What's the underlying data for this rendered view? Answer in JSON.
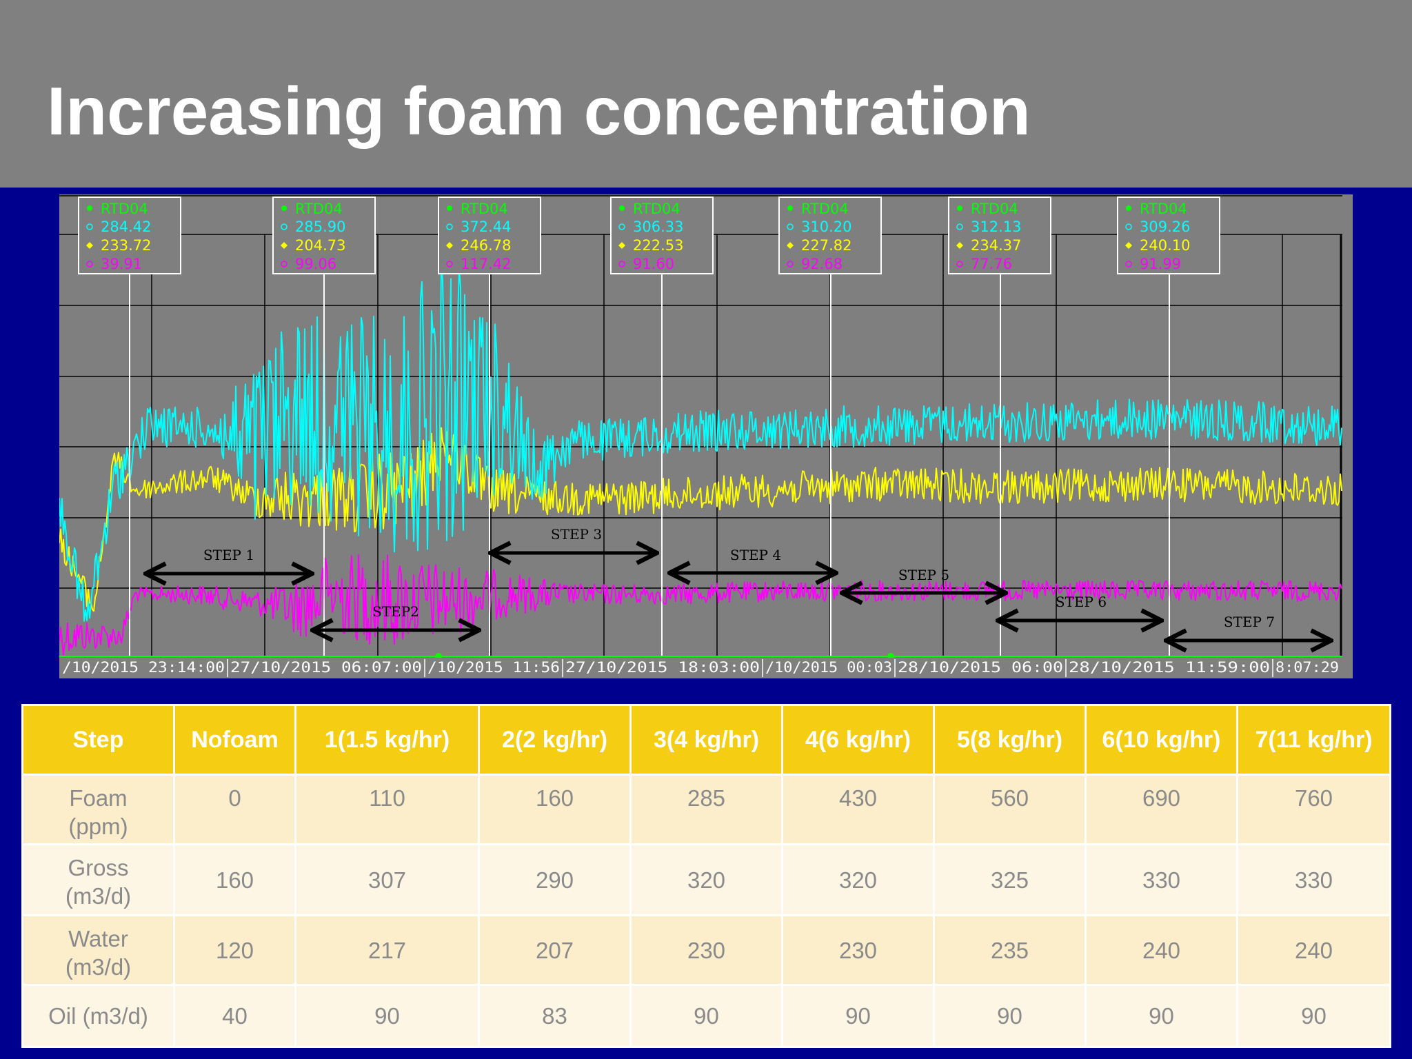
{
  "slide": {
    "title": "Increasing foam concentration"
  },
  "colors": {
    "header_bg": "#808080",
    "slide_bg": "#00008e",
    "plot_bg": "#7f7f7f",
    "cyan": "#00ffff",
    "yellow": "#ffff00",
    "magenta": "#ff00ff",
    "green": "#00ff00",
    "table_header": "#f5cd12",
    "table_row_a": "#fdeecb",
    "table_row_b": "#fef6e4"
  },
  "chart_data": {
    "type": "line",
    "title": "",
    "xlabel": "",
    "ylabel": "",
    "grid": true,
    "x_tick_labels": [
      "/10/2015 23:14:00",
      "27/10/2015 06:07:00",
      "/10/2015 11:56",
      "27/10/2015 18:03:00",
      "/10/2015 00:03",
      "28/10/2015 06:00",
      "28/10/2015 11:59:00",
      "8:07:29"
    ],
    "series_colors": [
      "#00ffff",
      "#ffff00",
      "#ff00ff"
    ],
    "cursors": [
      {
        "tag": "RTD04",
        "values": [
          "284.42",
          "233.72",
          "39.91"
        ]
      },
      {
        "tag": "RTD04",
        "values": [
          "285.90",
          "204.73",
          "99.06"
        ]
      },
      {
        "tag": "RTD04",
        "values": [
          "372.44",
          "246.78",
          "117.42"
        ]
      },
      {
        "tag": "RTD04",
        "values": [
          "306.33",
          "222.53",
          "91.60"
        ]
      },
      {
        "tag": "RTD04",
        "values": [
          "310.20",
          "227.82",
          "92.68"
        ]
      },
      {
        "tag": "RTD04",
        "values": [
          "312.13",
          "234.37",
          "77.76"
        ]
      },
      {
        "tag": "RTD04",
        "values": [
          "309.26",
          "240.10",
          "91.99"
        ]
      }
    ],
    "steps": [
      "STEP 1",
      "STEP2",
      "STEP 3",
      "STEP 4",
      "STEP 5",
      "STEP 6",
      "STEP 7"
    ]
  },
  "table": {
    "headers": [
      [
        "Step"
      ],
      [
        "No",
        "foam"
      ],
      [
        "1",
        "(1.5 kg/hr)"
      ],
      [
        "2",
        "(2 kg/hr)"
      ],
      [
        "3",
        "(4 kg/hr)"
      ],
      [
        "4",
        "(6 kg/hr)"
      ],
      [
        "5",
        "(8 kg/hr)"
      ],
      [
        "6",
        "(10 kg/hr)"
      ],
      [
        "7",
        "(11 kg/hr)"
      ]
    ],
    "rows": [
      {
        "label": [
          "Foam",
          "(ppm)"
        ],
        "values": [
          "0",
          "110",
          "160",
          "285",
          "430",
          "560",
          "690",
          "760"
        ]
      },
      {
        "label": [
          "Gross",
          "(m3/d)"
        ],
        "values": [
          "160",
          "307",
          "290",
          "320",
          "320",
          "325",
          "330",
          "330"
        ]
      },
      {
        "label": [
          "Water",
          "(m3/d)"
        ],
        "values": [
          "120",
          "217",
          "207",
          "230",
          "230",
          "235",
          "240",
          "240"
        ]
      },
      {
        "label": [
          "Oil (m3/d)"
        ],
        "values": [
          "40",
          "90",
          "83",
          "90",
          "90",
          "90",
          "90",
          "90"
        ]
      }
    ]
  }
}
